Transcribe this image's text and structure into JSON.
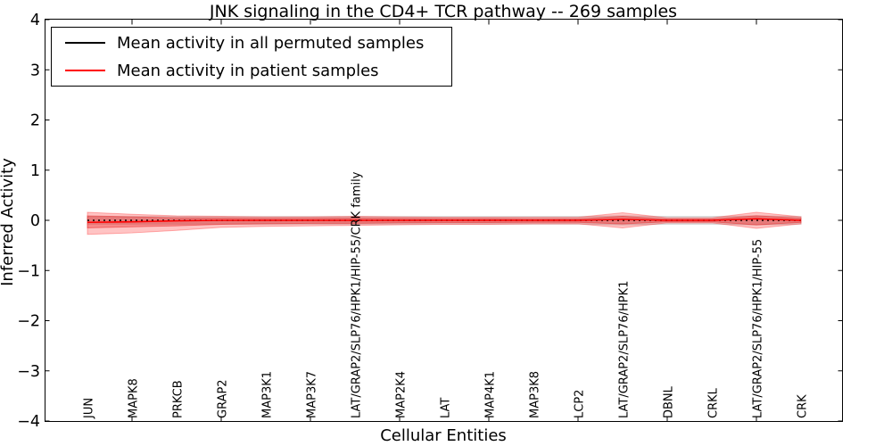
{
  "window": {
    "kind": "matplotlib-style figure"
  },
  "legend": {
    "entries": [
      {
        "label": "Mean activity in all permuted samples",
        "color": "#000000",
        "style": "solid"
      },
      {
        "label": "Mean activity in patient samples",
        "color": "#ff0000",
        "style": "solid"
      }
    ]
  },
  "chart_data": {
    "type": "line",
    "title": "JNK signaling in the CD4+ TCR pathway -- 269 samples",
    "xlabel": "Cellular Entities",
    "ylabel": "Inferred Activity",
    "ylim": [
      -4,
      4
    ],
    "yticks": [
      4,
      3,
      2,
      1,
      0,
      -1,
      -2,
      -3,
      -4
    ],
    "grid": false,
    "legend_position": "upper left",
    "categories": [
      "JUN",
      "MAPK8",
      "PRKCB",
      "GRAP2",
      "MAP3K1",
      "MAP3K7",
      "LAT/GRAP2/SLP76/HPK1/HIP-55/CRK family",
      "MAP2K4",
      "LAT",
      "MAP4K1",
      "MAP3K8",
      "LCP2",
      "LAT/GRAP2/SLP76/HPK1",
      "DBNL",
      "CRKL",
      "LAT/GRAP2/SLP76/HPK1/HIP-55",
      "CRK"
    ],
    "series": [
      {
        "name": "Mean activity in all permuted samples",
        "color": "#000000",
        "style": "dotted",
        "values": [
          0,
          0,
          0,
          0,
          0,
          0,
          0,
          0,
          0,
          0,
          0,
          0,
          0,
          0,
          0,
          0,
          0
        ]
      },
      {
        "name": "Mean activity in patient samples",
        "color": "#ff0000",
        "style": "solid",
        "values": [
          -0.04,
          -0.03,
          -0.01,
          0,
          0,
          0,
          0,
          0,
          0,
          0,
          0,
          0,
          0.02,
          0,
          0,
          0.03,
          0
        ]
      }
    ],
    "bands": [
      {
        "name": "permuted-samples-std",
        "color": "#b4b4b4",
        "alpha": 0.45,
        "upper": [
          0.075,
          0.075,
          0.075,
          0.075,
          0.075,
          0.075,
          0.075,
          0.075,
          0.075,
          0.075,
          0.075,
          0.075,
          0.09,
          0.075,
          0.075,
          0.09,
          0.075
        ],
        "lower": [
          -0.075,
          -0.075,
          -0.075,
          -0.075,
          -0.075,
          -0.075,
          -0.075,
          -0.075,
          -0.075,
          -0.075,
          -0.075,
          -0.075,
          -0.09,
          -0.075,
          -0.075,
          -0.09,
          -0.075
        ]
      },
      {
        "name": "patient-samples-std-outer",
        "color": "#ff3c3c",
        "alpha": 0.3,
        "upper": [
          0.16,
          0.12,
          0.09,
          0.08,
          0.07,
          0.07,
          0.08,
          0.07,
          0.06,
          0.06,
          0.06,
          0.06,
          0.15,
          0.05,
          0.05,
          0.16,
          0.07
        ],
        "lower": [
          -0.28,
          -0.25,
          -0.2,
          -0.14,
          -0.12,
          -0.11,
          -0.1,
          -0.09,
          -0.08,
          -0.08,
          -0.07,
          -0.07,
          -0.15,
          -0.05,
          -0.05,
          -0.16,
          -0.07
        ]
      },
      {
        "name": "patient-samples-std-inner",
        "color": "#e61e1e",
        "alpha": 0.35,
        "upper": [
          0.09,
          0.07,
          0.05,
          0.045,
          0.04,
          0.04,
          0.045,
          0.04,
          0.035,
          0.035,
          0.03,
          0.03,
          0.08,
          0.025,
          0.025,
          0.09,
          0.04
        ],
        "lower": [
          -0.15,
          -0.13,
          -0.11,
          -0.08,
          -0.07,
          -0.06,
          -0.06,
          -0.05,
          -0.045,
          -0.045,
          -0.04,
          -0.04,
          -0.07,
          -0.03,
          -0.03,
          -0.09,
          -0.04
        ]
      }
    ]
  }
}
